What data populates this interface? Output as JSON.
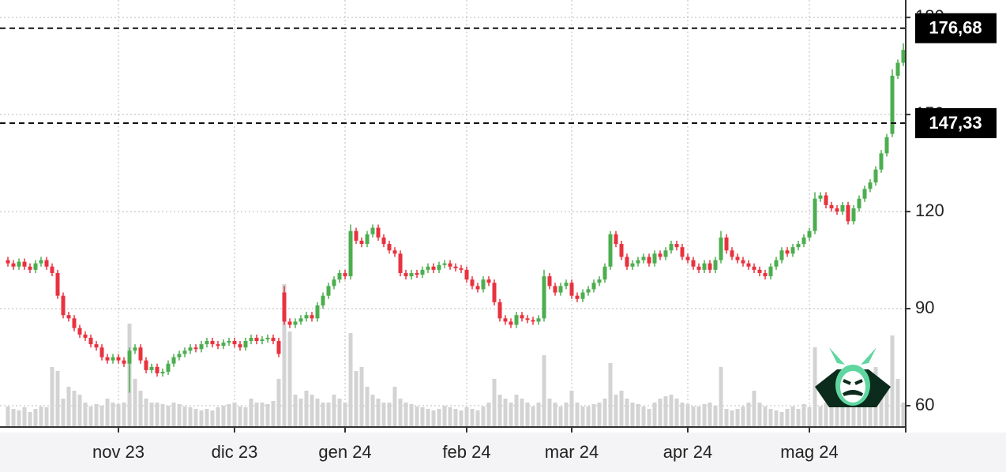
{
  "chart_data": {
    "type": "candlestick",
    "categories": [
      null,
      null,
      null,
      null,
      null,
      null,
      null,
      null,
      null,
      null,
      null,
      null,
      null,
      null,
      null,
      null,
      null,
      null,
      null,
      null,
      "nov 23",
      null,
      null,
      null,
      null,
      null,
      null,
      null,
      null,
      null,
      null,
      null,
      null,
      null,
      null,
      null,
      null,
      null,
      null,
      null,
      null,
      "dic 23",
      null,
      null,
      null,
      null,
      null,
      null,
      null,
      null,
      null,
      null,
      null,
      null,
      null,
      null,
      null,
      null,
      null,
      null,
      null,
      "gen 24",
      null,
      null,
      null,
      null,
      null,
      null,
      null,
      null,
      null,
      null,
      null,
      null,
      null,
      null,
      null,
      null,
      null,
      null,
      null,
      null,
      null,
      "feb 24",
      null,
      null,
      null,
      null,
      null,
      null,
      null,
      null,
      null,
      null,
      null,
      null,
      null,
      null,
      null,
      null,
      null,
      null,
      "mar 24",
      null,
      null,
      null,
      null,
      null,
      null,
      null,
      null,
      null,
      null,
      null,
      null,
      null,
      null,
      null,
      null,
      null,
      null,
      null,
      null,
      "apr 24",
      null,
      null,
      null,
      null,
      null,
      null,
      null,
      null,
      null,
      null,
      null,
      null,
      null,
      null,
      null,
      null,
      null,
      null,
      null,
      null,
      null,
      "mag 24",
      null,
      null,
      null,
      null,
      null,
      null,
      null,
      null,
      null,
      null,
      null,
      null,
      null,
      null,
      null,
      null,
      null
    ],
    "open": [
      105,
      104,
      103,
      104.5,
      103,
      102,
      104,
      105,
      103,
      101,
      94,
      88,
      87,
      84,
      82,
      81,
      79,
      78,
      75,
      74,
      75,
      74,
      73,
      77,
      78,
      74,
      71,
      72,
      70,
      70.5,
      73,
      75,
      76,
      77,
      78,
      77.5,
      79,
      80,
      79,
      78.5,
      79.5,
      80,
      79,
      78,
      80,
      81,
      80,
      80.5,
      81,
      80,
      95,
      86,
      85,
      86,
      87,
      88,
      87,
      91,
      94,
      97,
      99,
      101,
      100,
      114,
      111,
      110,
      113,
      115,
      112,
      110,
      108,
      107,
      101,
      100,
      101,
      100.5,
      102,
      103,
      102,
      103.5,
      104,
      103,
      102.5,
      102,
      99,
      97,
      96,
      99,
      98,
      92,
      87,
      86,
      85,
      88,
      87,
      86.5,
      86,
      87,
      100,
      97,
      95,
      97,
      98,
      94,
      93,
      95,
      96,
      98,
      99,
      103,
      113,
      110,
      106,
      103,
      104,
      105,
      106,
      104,
      107,
      106,
      108,
      110,
      109,
      106,
      105,
      103,
      102,
      104,
      102,
      105,
      112,
      108,
      106,
      105,
      104,
      103,
      102,
      101,
      100,
      103,
      105,
      108,
      107,
      109,
      110,
      112,
      114,
      124,
      125,
      122,
      121,
      120,
      122,
      117,
      121,
      124,
      127,
      129,
      133,
      138,
      144,
      162,
      166
    ],
    "high": [
      106,
      105,
      105.5,
      105.5,
      104,
      105,
      106,
      106,
      104,
      102,
      95,
      89,
      88,
      85,
      83,
      82,
      80,
      79,
      76,
      76,
      76,
      75,
      78,
      79,
      79,
      75,
      73,
      73,
      71.5,
      74,
      76,
      77,
      78,
      79,
      79,
      80,
      81,
      81,
      80,
      80.5,
      81,
      81,
      80,
      81,
      82,
      82,
      81.5,
      82,
      82,
      81,
      97,
      87,
      87,
      88,
      89,
      89,
      92,
      95,
      98,
      100,
      102,
      102,
      116,
      115,
      112,
      114,
      116,
      116,
      113,
      111,
      109,
      108,
      102,
      102,
      102,
      103,
      104,
      104,
      104.5,
      105,
      105,
      104,
      103.5,
      103,
      100,
      98,
      100,
      100,
      99,
      93,
      88,
      87,
      89,
      89,
      88,
      87.5,
      88,
      102,
      101,
      98,
      98,
      99,
      99,
      95,
      96,
      97,
      99,
      100,
      104,
      114,
      114,
      111,
      107,
      105,
      106,
      107,
      107,
      108,
      108,
      109,
      111,
      111,
      110,
      107,
      106,
      104,
      105,
      105,
      106,
      114,
      113,
      109,
      107,
      106,
      105,
      104,
      103,
      102,
      104,
      106,
      109,
      109,
      110,
      111,
      113,
      115,
      126,
      126,
      126,
      123,
      122,
      123,
      123,
      122,
      125,
      128,
      130,
      134,
      139,
      144,
      164,
      167,
      172
    ],
    "low": [
      103,
      102,
      102,
      102,
      101,
      101,
      103,
      102,
      100,
      93,
      87,
      86,
      83,
      81,
      80,
      78,
      77,
      74,
      73,
      73,
      73,
      72,
      64,
      76,
      73,
      70,
      70,
      69,
      69,
      69.5,
      72,
      74,
      75,
      76,
      76.5,
      76.5,
      78,
      78,
      77.5,
      77.5,
      78.5,
      78,
      77,
      77,
      79,
      79,
      79,
      79.5,
      79,
      75,
      85,
      84,
      84,
      85,
      86,
      86,
      86,
      90,
      93,
      96,
      98,
      99,
      99,
      110,
      109,
      109,
      112,
      111,
      109,
      107,
      106,
      100,
      99,
      99,
      99.5,
      99.5,
      101,
      101,
      101,
      102.5,
      102,
      101.5,
      101,
      98,
      96,
      95,
      95,
      97,
      91,
      86,
      85,
      84,
      84,
      86,
      85.5,
      85,
      85,
      86,
      96,
      94,
      94,
      96,
      93,
      92,
      92,
      94,
      95,
      97,
      98,
      102,
      109,
      105,
      102,
      102,
      103,
      104,
      103,
      103,
      105,
      105,
      107,
      108,
      105,
      104,
      102,
      101,
      101,
      101,
      101,
      104,
      107,
      105,
      104,
      103,
      102,
      101,
      100,
      99,
      99,
      102,
      104,
      106,
      106,
      108,
      109,
      111,
      113,
      123,
      121,
      120,
      119,
      119,
      116,
      116,
      120,
      123,
      126,
      128,
      132,
      137,
      143,
      161,
      165
    ],
    "close": [
      104,
      103,
      104.5,
      103,
      102,
      104,
      105,
      103,
      101,
      94,
      88,
      87,
      84,
      82,
      81,
      79,
      78,
      75,
      74,
      75,
      74,
      73,
      77,
      78,
      74,
      71,
      72,
      70,
      70.5,
      73,
      75,
      76,
      77,
      78,
      77.5,
      79,
      80,
      79,
      78.5,
      79.5,
      80,
      79,
      78,
      80,
      81,
      80,
      80.5,
      81,
      80,
      76,
      86,
      85,
      86,
      87,
      88,
      87,
      91,
      94,
      97,
      99,
      101,
      100,
      114,
      111,
      110,
      113,
      115,
      112,
      110,
      108,
      107,
      101,
      100,
      101,
      100.5,
      102,
      103,
      102,
      103.5,
      104,
      103,
      102.5,
      102,
      99,
      97,
      96,
      99,
      98,
      92,
      87,
      86,
      85,
      88,
      87,
      86.5,
      86,
      87,
      100,
      97,
      95,
      97,
      98,
      94,
      93,
      95,
      96,
      98,
      99,
      103,
      113,
      110,
      106,
      103,
      104,
      105,
      106,
      104,
      107,
      106,
      108,
      110,
      109,
      106,
      105,
      103,
      102,
      104,
      102,
      105,
      112,
      108,
      106,
      105,
      104,
      103,
      102,
      101,
      100,
      103,
      105,
      108,
      107,
      109,
      110,
      112,
      114,
      124,
      125,
      122,
      121,
      120,
      122,
      117,
      121,
      124,
      127,
      129,
      133,
      138,
      143,
      162,
      166,
      170
    ],
    "volume": [
      25,
      22,
      20,
      24,
      18,
      22,
      25,
      24,
      75,
      70,
      35,
      50,
      45,
      40,
      30,
      25,
      28,
      26,
      35,
      30,
      28,
      30,
      130,
      60,
      45,
      35,
      30,
      30,
      28,
      26,
      30,
      28,
      25,
      24,
      22,
      20,
      22,
      20,
      24,
      26,
      28,
      30,
      25,
      24,
      35,
      30,
      30,
      28,
      32,
      60,
      180,
      120,
      40,
      35,
      45,
      40,
      35,
      30,
      30,
      40,
      35,
      30,
      118,
      70,
      75,
      50,
      40,
      35,
      30,
      30,
      50,
      35,
      30,
      28,
      25,
      24,
      22,
      20,
      22,
      26,
      24,
      22,
      20,
      24,
      22,
      20,
      25,
      30,
      60,
      40,
      35,
      30,
      40,
      35,
      30,
      25,
      30,
      90,
      35,
      30,
      25,
      30,
      45,
      30,
      25,
      25,
      28,
      30,
      35,
      80,
      40,
      45,
      35,
      30,
      28,
      25,
      22,
      30,
      35,
      38,
      40,
      35,
      30,
      28,
      25,
      25,
      28,
      30,
      26,
      75,
      22,
      20,
      22,
      25,
      30,
      45,
      30,
      25,
      22,
      20,
      18,
      22,
      25,
      22,
      28,
      24,
      100,
      25,
      30,
      35,
      45,
      45,
      40,
      35,
      45,
      30,
      35,
      75,
      45,
      50,
      115,
      60,
      30
    ],
    "up_color": "#4cae4f",
    "down_color": "#e8323f",
    "volume_color": "#d3d3d3",
    "ylim": [
      53.66,
      185.4
    ],
    "yticks": [
      60,
      90,
      120,
      150,
      180
    ],
    "grid": true,
    "price_lines": {
      "values": [
        176.68,
        147.33
      ],
      "value_labels": [
        "176,68",
        "147,33"
      ]
    }
  }
}
